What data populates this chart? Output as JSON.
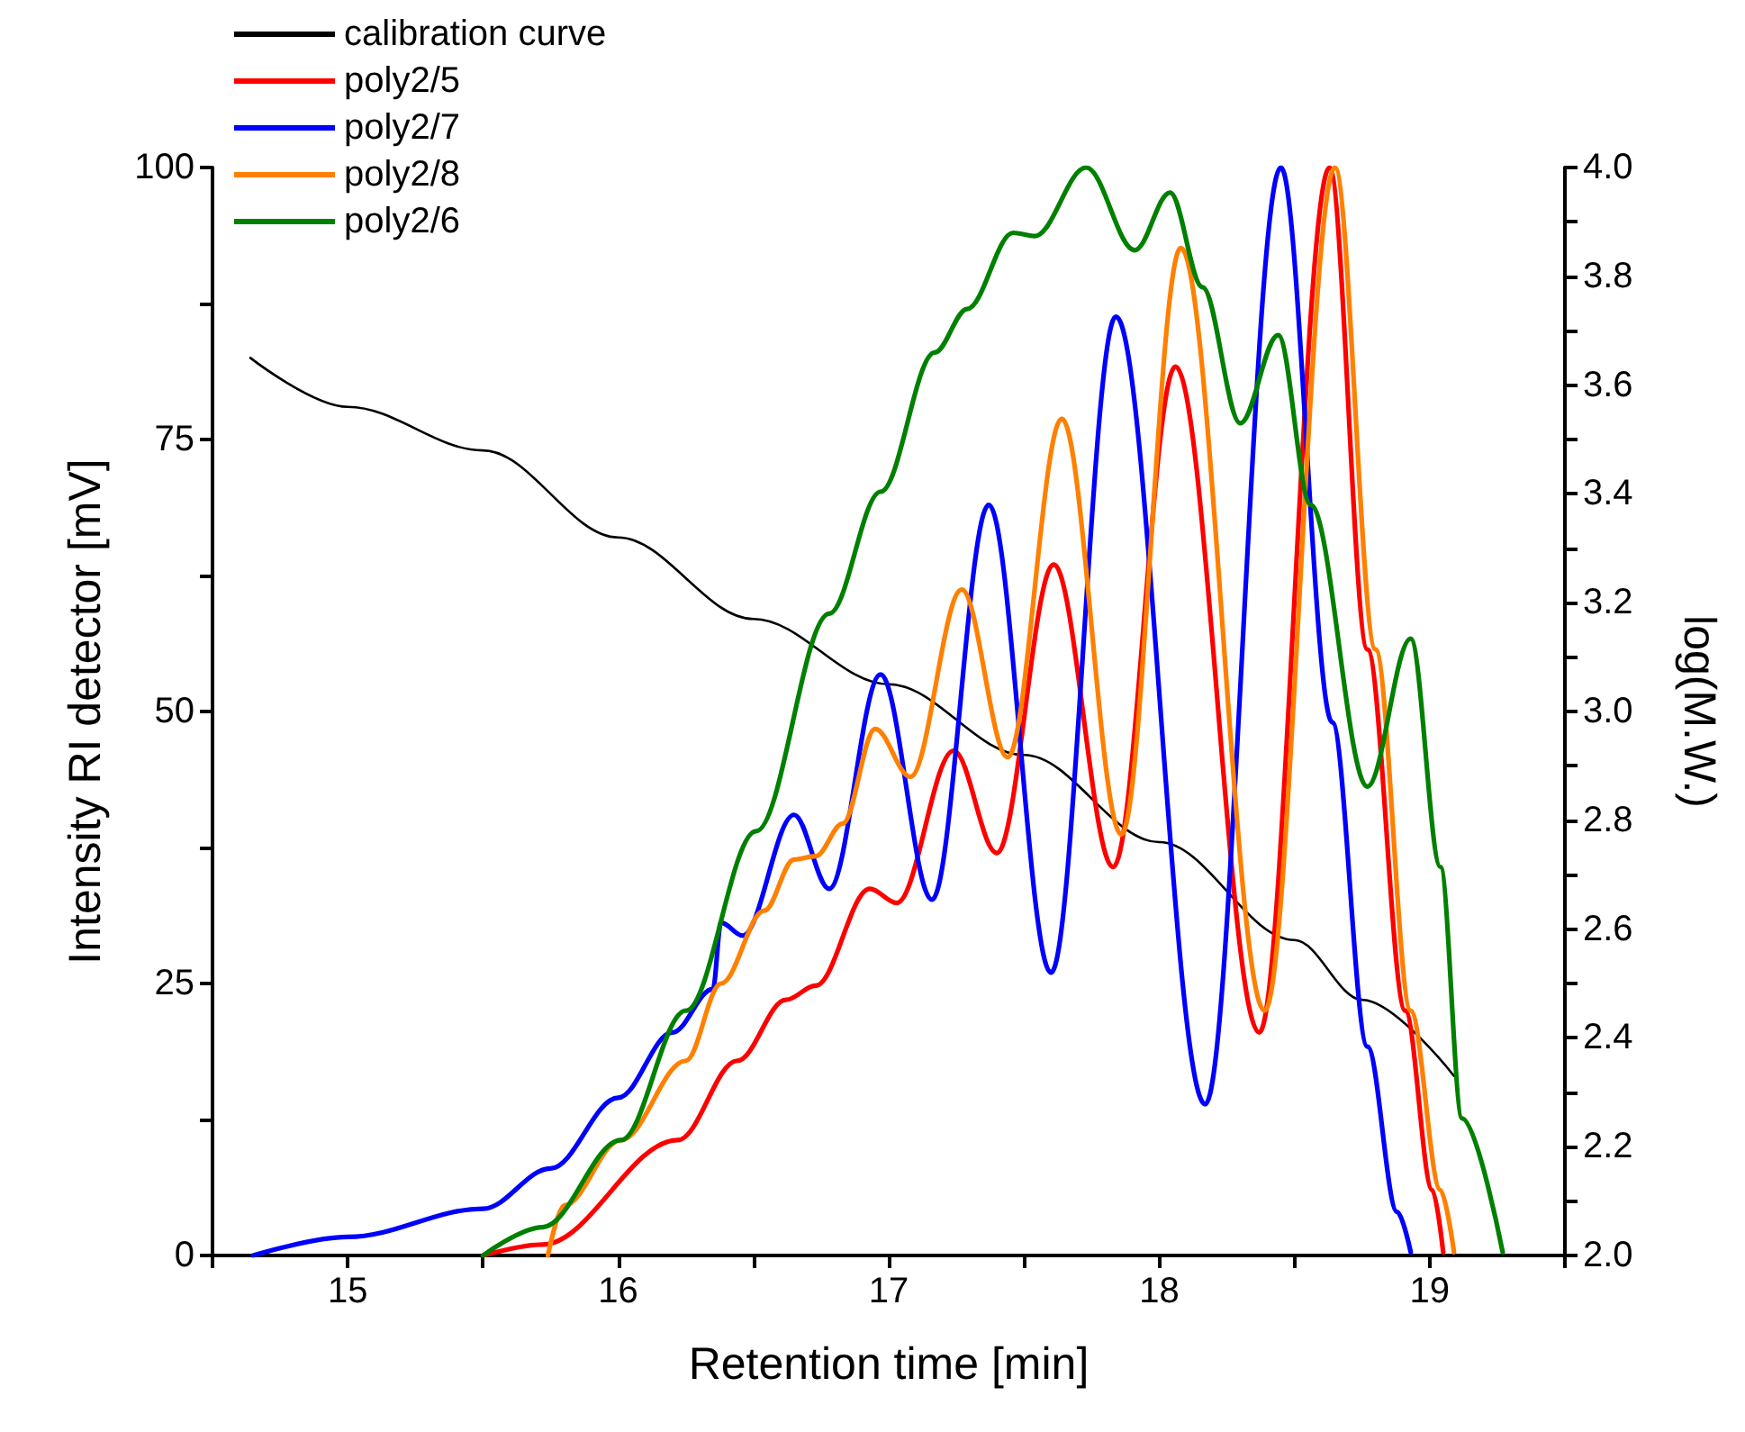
{
  "chart_data": {
    "type": "line",
    "xlabel": "Retention time [min]",
    "ylabel": "Intensity RI detector [mV]",
    "y2label": "log(M.W.)",
    "xlim": [
      14.5,
      19.5
    ],
    "ylim": [
      0,
      100
    ],
    "y2lim": [
      2,
      4
    ],
    "xticks": [
      {
        "value": 14.5,
        "label": null
      },
      15,
      {
        "value": 15.5,
        "label": null
      },
      16,
      {
        "value": 16.5,
        "label": null
      },
      17,
      {
        "value": 17.5,
        "label": null
      },
      18,
      {
        "value": 18.5,
        "label": null
      },
      19,
      {
        "value": 19.5,
        "label": null
      }
    ],
    "yticks": [
      0,
      {
        "value": 12.5,
        "label": null
      },
      25,
      {
        "value": 37.5,
        "label": null
      },
      50,
      {
        "value": 62.5,
        "label": null
      },
      75,
      {
        "value": 87.5,
        "label": null
      },
      100
    ],
    "y2ticks": [
      {
        "value": 2,
        "label": "2.0"
      },
      {
        "value": 2.1,
        "label": null
      },
      {
        "value": 2.2,
        "label": "2.2"
      },
      {
        "value": 2.3,
        "label": null
      },
      {
        "value": 2.4,
        "label": "2.4"
      },
      {
        "value": 2.5,
        "label": null
      },
      {
        "value": 2.6,
        "label": "2.6"
      },
      {
        "value": 2.7,
        "label": null
      },
      {
        "value": 2.8,
        "label": "2.8"
      },
      {
        "value": 2.9,
        "label": null
      },
      {
        "value": 3,
        "label": "3.0"
      },
      {
        "value": 3.1,
        "label": null
      },
      {
        "value": 3.2,
        "label": "3.2"
      },
      {
        "value": 3.3,
        "label": null
      },
      {
        "value": 3.4,
        "label": "3.4"
      },
      {
        "value": 3.5,
        "label": null
      },
      {
        "value": 3.6,
        "label": "3.6"
      },
      {
        "value": 3.7,
        "label": null
      },
      {
        "value": 3.8,
        "label": "3.8"
      },
      {
        "value": 3.9,
        "label": null
      },
      {
        "value": 4,
        "label": "4.0"
      }
    ],
    "grid": false,
    "legend": "top left",
    "marker": "none",
    "line_style": "solid",
    "series": [
      {
        "name": "calibration curve",
        "color": "#000000",
        "axis": "y2",
        "x": [
          14.64,
          15,
          15.5,
          16,
          16.5,
          17,
          17.5,
          18,
          18.5,
          18.75,
          19.09
        ],
        "values": [
          3.65,
          3.56,
          3.48,
          3.32,
          3.17,
          3.05,
          2.92,
          2.76,
          2.58,
          2.47,
          2.33
        ]
      },
      {
        "name": "poly2/5",
        "color": "#ff0000",
        "x": [
          15.5,
          15.72,
          16.22,
          16.44,
          16.62,
          16.73,
          16.93,
          17.03,
          17.24,
          17.4,
          17.61,
          17.83,
          18.06,
          18.37,
          18.63,
          18.77,
          18.91,
          19.01,
          19.05
        ],
        "values": [
          0,
          1,
          10.6,
          17.9,
          23.5,
          24.8,
          33.7,
          32.4,
          46.4,
          37,
          63.5,
          35.7,
          81.7,
          20.5,
          100,
          55.7,
          22.5,
          6,
          0.3
        ]
      },
      {
        "name": "poly2/7",
        "color": "#0000ff",
        "x": [
          14.65,
          15,
          15.5,
          15.75,
          16,
          16.2,
          16.35,
          16.38,
          16.46,
          16.65,
          16.78,
          16.97,
          17.16,
          17.37,
          17.6,
          17.84,
          18.17,
          18.45,
          18.64,
          18.77,
          18.88,
          18.93
        ],
        "values": [
          0,
          1.7,
          4.3,
          8,
          14.5,
          20.5,
          24.5,
          30.6,
          29.4,
          40.5,
          33.7,
          53.4,
          32.7,
          69,
          26,
          86.3,
          13.9,
          100,
          49,
          19.2,
          4,
          0.3
        ]
      },
      {
        "name": "poly2/8",
        "color": "#ff8000",
        "x": [
          15.74,
          15.8,
          16.01,
          16.25,
          16.38,
          16.54,
          16.65,
          16.73,
          16.83,
          16.95,
          17.08,
          17.27,
          17.44,
          17.64,
          17.86,
          18.08,
          18.39,
          18.65,
          18.8,
          18.93,
          19.04,
          19.09
        ],
        "values": [
          0,
          4.6,
          10.6,
          17.9,
          25,
          31.7,
          36.4,
          36.7,
          39.7,
          48.4,
          44,
          61.2,
          45.8,
          76.9,
          38.7,
          92.6,
          22.5,
          100,
          55.7,
          22.5,
          6,
          0.3
        ]
      },
      {
        "name": "poly2/6",
        "color": "#008000",
        "x": [
          15.5,
          15.72,
          16.01,
          16.25,
          16.51,
          16.78,
          16.97,
          17.17,
          17.29,
          17.46,
          17.54,
          17.73,
          17.91,
          18.04,
          18.16,
          18.3,
          18.44,
          18.56,
          18.77,
          18.93,
          19.04,
          19.12,
          19.27
        ],
        "values": [
          0,
          2.6,
          10.6,
          22.5,
          39,
          59,
          70.2,
          83,
          87,
          94,
          93.7,
          100,
          92.4,
          97.7,
          89,
          76.5,
          84.6,
          69,
          43.1,
          56.7,
          35.7,
          12.6,
          0.3
        ]
      }
    ]
  }
}
